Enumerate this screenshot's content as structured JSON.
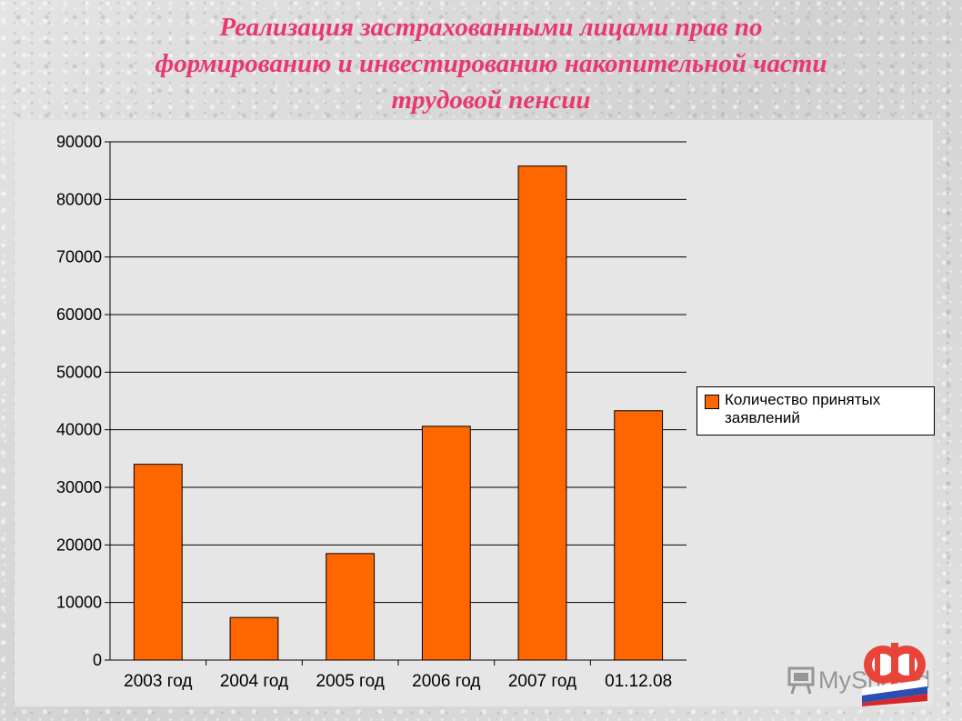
{
  "slide": {
    "title_lines": [
      "Реализация застрахованными лицами прав по",
      "формированию и инвестированию накопительной части",
      "трудовой пенсии"
    ],
    "watermark_text": "MyShared"
  },
  "colors": {
    "title": "#e8386e",
    "bar": "#ff6600",
    "plot_background": "#e6e6e6"
  },
  "chart_data": {
    "type": "bar",
    "title": "",
    "xlabel": "",
    "ylabel": "",
    "categories": [
      "2003 год",
      "2004 год",
      "2005 год",
      "2006 год",
      "2007 год",
      "01.12.08"
    ],
    "series": [
      {
        "name": "Количество принятых заявлений",
        "values": [
          34000,
          7400,
          18500,
          40600,
          85800,
          43300
        ]
      }
    ],
    "ylim": [
      0,
      90000
    ],
    "yticks": [
      "0",
      "10000",
      "20000",
      "30000",
      "40000",
      "50000",
      "60000",
      "70000",
      "80000",
      "90000"
    ],
    "grid": true,
    "legend": "right"
  }
}
